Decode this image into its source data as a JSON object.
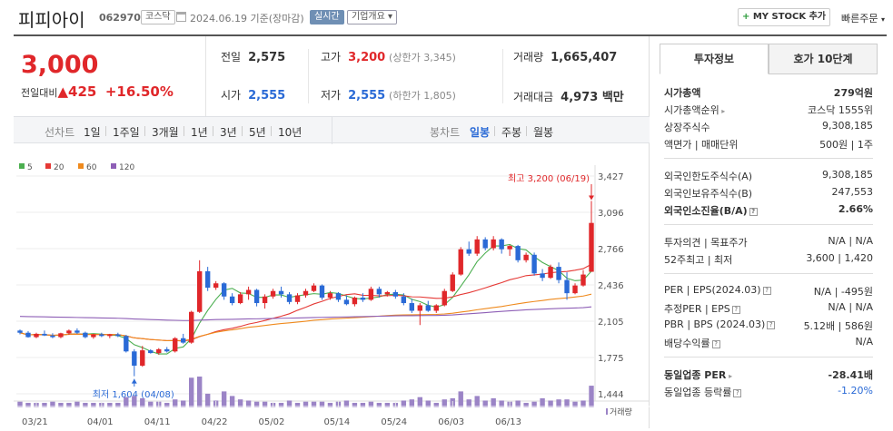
{
  "header": {
    "name": "피피아이",
    "code": "062970",
    "market": "코스닥",
    "date": "2024.06.19 기준(장마감)",
    "realtime": "실시간",
    "company_info": "기업개요",
    "my_stock": "MY STOCK 추가",
    "quick_order": "빠른주문"
  },
  "price": {
    "current": "3,000",
    "change_label": "전일대비",
    "change_amount": "425",
    "change_pct": "+16.50%"
  },
  "stats": {
    "prev_label": "전일",
    "prev": "2,575",
    "high_label": "고가",
    "high": "3,200",
    "upper_limit": "(상한가 3,345)",
    "volume_label": "거래량",
    "volume": "1,665,407",
    "open_label": "시가",
    "open": "2,555",
    "low_label": "저가",
    "low": "2,555",
    "lower_limit": "(하한가 1,805)",
    "amount_label": "거래대금",
    "amount": "4,973 백만"
  },
  "period_bar": {
    "line_label": "선차트",
    "line_periods": [
      "1일",
      "1주일",
      "3개월",
      "1년",
      "3년",
      "5년",
      "10년"
    ],
    "candle_label": "봉차트",
    "candle_periods": [
      "일봉",
      "주봉",
      "월봉"
    ],
    "selected": "일봉"
  },
  "chart_data": {
    "type": "candlestick",
    "legend": [
      {
        "name": "5",
        "color": "#4caf50"
      },
      {
        "name": "20",
        "color": "#e53935"
      },
      {
        "name": "60",
        "color": "#ef8a1d"
      },
      {
        "name": "120",
        "color": "#8e5fb6"
      }
    ],
    "y_ticks": [
      "3,427",
      "3,096",
      "2,766",
      "2,436",
      "2,105",
      "1,775",
      "1,444"
    ],
    "ylim": [
      1444,
      3427
    ],
    "x_ticks": [
      "03/21",
      "04/01",
      "04/11",
      "04/22",
      "05/02",
      "05/14",
      "05/24",
      "06/03",
      "06/13"
    ],
    "annotations": {
      "high": "최고 3,200 (06/19)",
      "low": "최저 1,604 (04/08)"
    },
    "volume_label": "거래량",
    "candles": [
      [
        2020,
        2030,
        1985,
        2000
      ],
      [
        2000,
        2015,
        1955,
        1960
      ],
      [
        1960,
        2000,
        1950,
        1990
      ],
      [
        1990,
        2020,
        1970,
        1975
      ],
      [
        1975,
        1995,
        1950,
        1960
      ],
      [
        1960,
        2000,
        1950,
        1995
      ],
      [
        1995,
        2030,
        1980,
        2020
      ],
      [
        2020,
        2040,
        1990,
        2000
      ],
      [
        2000,
        2010,
        1950,
        1960
      ],
      [
        1960,
        1990,
        1945,
        1985
      ],
      [
        1985,
        2000,
        1960,
        1970
      ],
      [
        1970,
        1990,
        1950,
        1985
      ],
      [
        1985,
        2000,
        1960,
        1970
      ],
      [
        1970,
        1980,
        1820,
        1830
      ],
      [
        1830,
        1850,
        1604,
        1700
      ],
      [
        1700,
        1880,
        1690,
        1840
      ],
      [
        1840,
        1850,
        1810,
        1815
      ],
      [
        1815,
        1860,
        1800,
        1850
      ],
      [
        1850,
        1870,
        1820,
        1830
      ],
      [
        1830,
        1960,
        1820,
        1950
      ],
      [
        1950,
        1990,
        1900,
        1910
      ],
      [
        1910,
        2200,
        1900,
        2190
      ],
      [
        2190,
        2660,
        2180,
        2560
      ],
      [
        2560,
        2600,
        2380,
        2410
      ],
      [
        2410,
        2470,
        2390,
        2450
      ],
      [
        2450,
        2460,
        2300,
        2330
      ],
      [
        2330,
        2360,
        2250,
        2270
      ],
      [
        2270,
        2370,
        2260,
        2350
      ],
      [
        2350,
        2420,
        2300,
        2390
      ],
      [
        2390,
        2400,
        2240,
        2270
      ],
      [
        2270,
        2350,
        2220,
        2330
      ],
      [
        2330,
        2400,
        2310,
        2380
      ],
      [
        2380,
        2420,
        2320,
        2350
      ],
      [
        2350,
        2370,
        2260,
        2280
      ],
      [
        2280,
        2360,
        2260,
        2340
      ],
      [
        2340,
        2400,
        2320,
        2380
      ],
      [
        2380,
        2450,
        2370,
        2430
      ],
      [
        2430,
        2440,
        2300,
        2320
      ],
      [
        2320,
        2380,
        2300,
        2360
      ],
      [
        2360,
        2370,
        2280,
        2300
      ],
      [
        2300,
        2340,
        2250,
        2260
      ],
      [
        2260,
        2330,
        2240,
        2320
      ],
      [
        2320,
        2360,
        2280,
        2300
      ],
      [
        2300,
        2420,
        2290,
        2400
      ],
      [
        2400,
        2420,
        2320,
        2350
      ],
      [
        2350,
        2380,
        2330,
        2370
      ],
      [
        2370,
        2390,
        2310,
        2330
      ],
      [
        2330,
        2360,
        2250,
        2270
      ],
      [
        2270,
        2310,
        2180,
        2200
      ],
      [
        2200,
        2270,
        2070,
        2250
      ],
      [
        2250,
        2290,
        2190,
        2200
      ],
      [
        2200,
        2260,
        2180,
        2250
      ],
      [
        2250,
        2400,
        2240,
        2380
      ],
      [
        2380,
        2550,
        2370,
        2530
      ],
      [
        2530,
        2780,
        2520,
        2760
      ],
      [
        2760,
        2830,
        2700,
        2720
      ],
      [
        2720,
        2880,
        2700,
        2850
      ],
      [
        2850,
        2870,
        2750,
        2770
      ],
      [
        2770,
        2880,
        2750,
        2850
      ],
      [
        2850,
        2860,
        2720,
        2760
      ],
      [
        2760,
        2800,
        2700,
        2790
      ],
      [
        2790,
        2800,
        2640,
        2660
      ],
      [
        2660,
        2730,
        2640,
        2710
      ],
      [
        2710,
        2730,
        2520,
        2540
      ],
      [
        2540,
        2580,
        2470,
        2500
      ],
      [
        2500,
        2620,
        2490,
        2600
      ],
      [
        2600,
        2640,
        2450,
        2480
      ],
      [
        2480,
        2550,
        2300,
        2360
      ],
      [
        2360,
        2450,
        2350,
        2430
      ],
      [
        2430,
        2570,
        2420,
        2530
      ],
      [
        2555,
        3200,
        2555,
        3000
      ]
    ],
    "volume": [
      5,
      4,
      4,
      4,
      5,
      4,
      4,
      5,
      4,
      4,
      4,
      4,
      4,
      9,
      10,
      8,
      5,
      5,
      4,
      7,
      6,
      26,
      27,
      12,
      6,
      14,
      10,
      7,
      6,
      5,
      5,
      4,
      4,
      6,
      4,
      5,
      5,
      5,
      4,
      5,
      6,
      4,
      4,
      5,
      4,
      4,
      4,
      6,
      7,
      9,
      6,
      4,
      7,
      8,
      14,
      7,
      10,
      6,
      8,
      6,
      5,
      6,
      4,
      5,
      8,
      6,
      7,
      7,
      5,
      6,
      19
    ]
  },
  "tabs": {
    "invest": "투자정보",
    "orderbook": "호가 10단계"
  },
  "invest_info": {
    "group1": [
      {
        "k": "시가총액",
        "v": "279억원",
        "bold": true
      },
      {
        "k": "시가총액순위",
        "v": "코스닥 1555위",
        "arrow": true
      },
      {
        "k": "상장주식수",
        "v": "9,308,185"
      },
      {
        "k": "액면가 | 매매단위",
        "v": "500원 | 1주"
      }
    ],
    "group2": [
      {
        "k": "외국인한도주식수(A)",
        "v": "9,308,185"
      },
      {
        "k": "외국인보유주식수(B)",
        "v": "247,553"
      },
      {
        "k": "외국인소진율(B/A)",
        "v": "2.66%",
        "bold": true,
        "q": true
      }
    ],
    "group3": [
      {
        "k": "투자의견 | 목표주가",
        "v": "N/A | N/A"
      },
      {
        "k": "52주최고 | 최저",
        "v": "3,600 | 1,420"
      }
    ],
    "group4": [
      {
        "k": "PER | EPS(2024.03)",
        "v": "N/A | -495원",
        "q": true
      },
      {
        "k": "추정PER | EPS",
        "v": "N/A | N/A",
        "q": true
      },
      {
        "k": "PBR | BPS (2024.03)",
        "v": "5.12배 | 586원",
        "q": true
      },
      {
        "k": "배당수익률",
        "v": "N/A",
        "q": true
      }
    ],
    "group5": [
      {
        "k": "동일업종 PER",
        "v": "-28.41배",
        "bold": true,
        "arrow": true
      },
      {
        "k": "동일업종 등락률",
        "v": "-1.20%",
        "blue": true,
        "q": true
      }
    ]
  }
}
